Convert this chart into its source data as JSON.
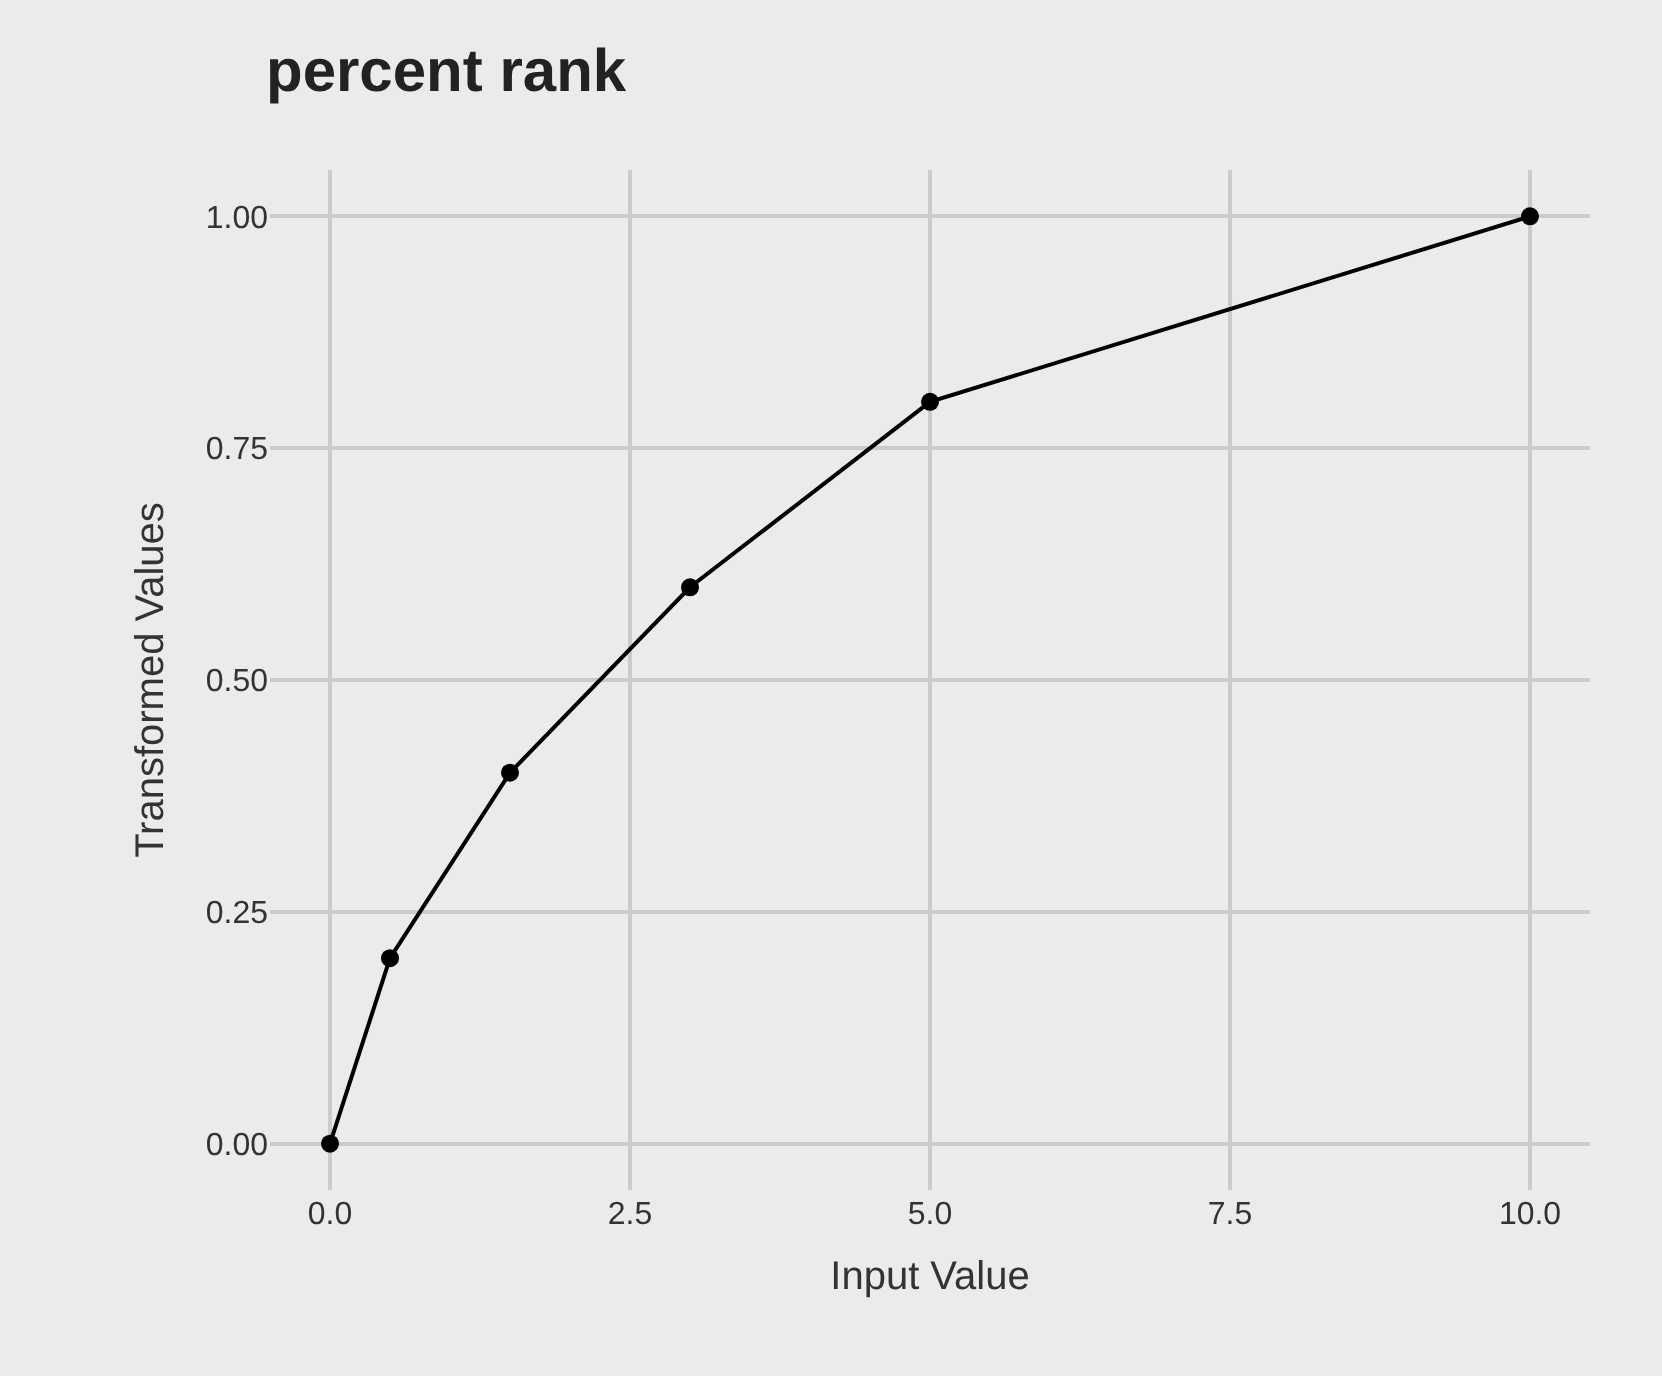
{
  "chart_data": {
    "type": "line",
    "title": "percent rank",
    "xlabel": "Input Value",
    "ylabel": "Transformed Values",
    "x": [
      0,
      0.5,
      1.5,
      3,
      5,
      10
    ],
    "series": [
      {
        "color": "#000000",
        "values": [
          0,
          0.2,
          0.4,
          0.6,
          0.8,
          1.0
        ]
      }
    ],
    "xlim": [
      -0.5,
      10.5
    ],
    "xticks": [
      {
        "value": 0,
        "label": "0.0"
      },
      {
        "value": 2.5,
        "label": "2.5"
      },
      {
        "value": 5,
        "label": "5.0"
      },
      {
        "value": 7.5,
        "label": "7.5"
      },
      {
        "value": 10,
        "label": "10.0"
      }
    ],
    "ylim": [
      -0.05,
      1.05
    ],
    "yticks": [
      {
        "value": 0,
        "label": "0.00"
      },
      {
        "value": 0.25,
        "label": "0.25"
      },
      {
        "value": 0.5,
        "label": "0.50"
      },
      {
        "value": 0.75,
        "label": "0.75"
      },
      {
        "value": 1,
        "label": "1.00"
      }
    ],
    "grid": true,
    "marker": "circle",
    "line_style": "solid"
  }
}
